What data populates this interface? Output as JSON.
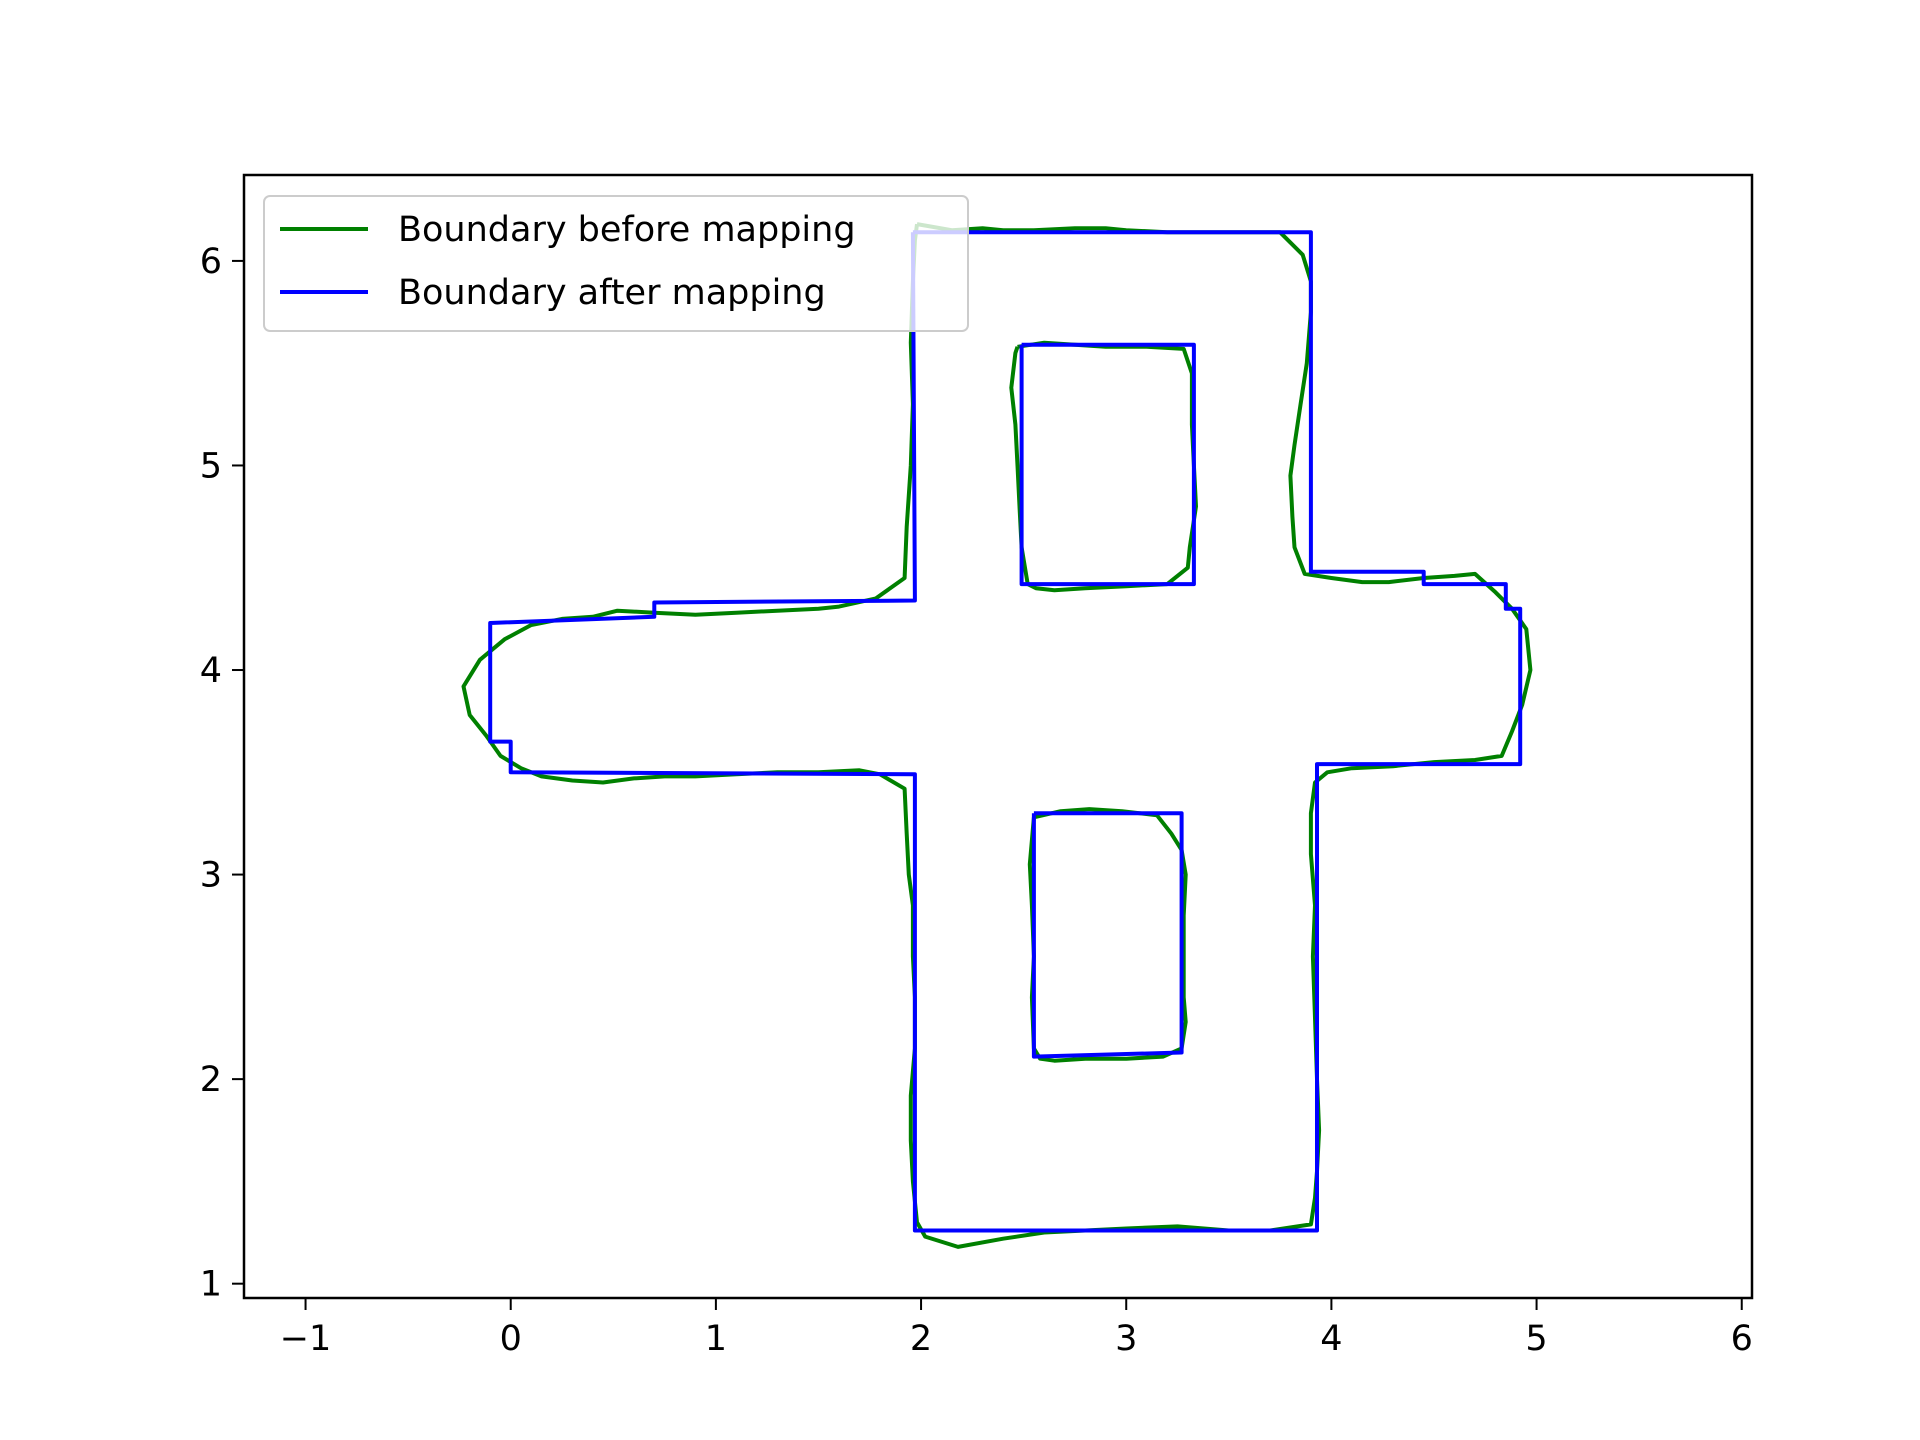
{
  "chart_data": {
    "type": "line",
    "title": "",
    "xlabel": "",
    "ylabel": "",
    "xlim": [
      -1.3,
      6.05
    ],
    "ylim": [
      0.93,
      6.42
    ],
    "xticks": [
      -1,
      0,
      1,
      2,
      3,
      4,
      5,
      6
    ],
    "xtick_labels": [
      "−1",
      "0",
      "1",
      "2",
      "3",
      "4",
      "5",
      "6"
    ],
    "yticks": [
      1,
      2,
      3,
      4,
      5,
      6
    ],
    "ytick_labels": [
      "1",
      "2",
      "3",
      "4",
      "5",
      "6"
    ],
    "grid": false,
    "legend_position": "upper-left",
    "series": [
      {
        "name": "Boundary before mapping",
        "color": "#008000",
        "paths": [
          [
            [
              1.98,
              6.18
            ],
            [
              2.15,
              6.15
            ],
            [
              2.3,
              6.16
            ],
            [
              2.4,
              6.15
            ],
            [
              2.55,
              6.15
            ],
            [
              2.75,
              6.16
            ],
            [
              2.9,
              6.16
            ],
            [
              3.0,
              6.15
            ],
            [
              3.2,
              6.14
            ],
            [
              3.4,
              6.14
            ],
            [
              3.6,
              6.14
            ],
            [
              3.75,
              6.14
            ],
            [
              3.86,
              6.03
            ],
            [
              3.9,
              5.9
            ],
            [
              3.9,
              5.75
            ],
            [
              3.88,
              5.5
            ],
            [
              3.85,
              5.3
            ],
            [
              3.82,
              5.1
            ],
            [
              3.8,
              4.95
            ],
            [
              3.81,
              4.75
            ],
            [
              3.82,
              4.6
            ],
            [
              3.87,
              4.47
            ],
            [
              4.0,
              4.45
            ],
            [
              4.15,
              4.43
            ],
            [
              4.28,
              4.43
            ],
            [
              4.45,
              4.45
            ],
            [
              4.6,
              4.46
            ],
            [
              4.7,
              4.47
            ],
            [
              4.8,
              4.38
            ],
            [
              4.88,
              4.3
            ],
            [
              4.95,
              4.2
            ],
            [
              4.97,
              4.0
            ],
            [
              4.93,
              3.83
            ],
            [
              4.88,
              3.7
            ],
            [
              4.83,
              3.58
            ],
            [
              4.7,
              3.56
            ],
            [
              4.5,
              3.55
            ],
            [
              4.3,
              3.53
            ],
            [
              4.1,
              3.52
            ],
            [
              3.98,
              3.5
            ],
            [
              3.92,
              3.45
            ],
            [
              3.9,
              3.3
            ],
            [
              3.9,
              3.1
            ],
            [
              3.92,
              2.85
            ],
            [
              3.91,
              2.6
            ],
            [
              3.92,
              2.3
            ],
            [
              3.93,
              2.0
            ],
            [
              3.94,
              1.75
            ],
            [
              3.93,
              1.55
            ],
            [
              3.92,
              1.42
            ],
            [
              3.9,
              1.29
            ],
            [
              3.7,
              1.26
            ],
            [
              3.5,
              1.26
            ],
            [
              3.25,
              1.28
            ],
            [
              3.0,
              1.27
            ],
            [
              2.8,
              1.26
            ],
            [
              2.6,
              1.25
            ],
            [
              2.4,
              1.22
            ],
            [
              2.18,
              1.18
            ],
            [
              2.02,
              1.23
            ],
            [
              1.98,
              1.3
            ],
            [
              1.96,
              1.5
            ],
            [
              1.95,
              1.7
            ],
            [
              1.95,
              1.92
            ],
            [
              1.97,
              2.15
            ],
            [
              1.97,
              2.4
            ],
            [
              1.96,
              2.6
            ],
            [
              1.96,
              2.85
            ],
            [
              1.94,
              3.0
            ],
            [
              1.93,
              3.2
            ],
            [
              1.92,
              3.42
            ],
            [
              1.8,
              3.49
            ],
            [
              1.7,
              3.51
            ],
            [
              1.5,
              3.5
            ],
            [
              1.3,
              3.5
            ],
            [
              1.1,
              3.49
            ],
            [
              0.9,
              3.48
            ],
            [
              0.75,
              3.48
            ],
            [
              0.6,
              3.47
            ],
            [
              0.45,
              3.45
            ],
            [
              0.3,
              3.46
            ],
            [
              0.15,
              3.48
            ],
            [
              0.05,
              3.52
            ],
            [
              -0.05,
              3.58
            ],
            [
              -0.12,
              3.68
            ],
            [
              -0.2,
              3.78
            ],
            [
              -0.23,
              3.92
            ],
            [
              -0.15,
              4.05
            ],
            [
              -0.03,
              4.15
            ],
            [
              0.1,
              4.22
            ],
            [
              0.25,
              4.25
            ],
            [
              0.4,
              4.26
            ],
            [
              0.52,
              4.29
            ],
            [
              0.7,
              4.28
            ],
            [
              0.9,
              4.27
            ],
            [
              1.1,
              4.28
            ],
            [
              1.3,
              4.29
            ],
            [
              1.5,
              4.3
            ],
            [
              1.6,
              4.31
            ],
            [
              1.78,
              4.35
            ],
            [
              1.92,
              4.45
            ],
            [
              1.93,
              4.7
            ],
            [
              1.95,
              5.0
            ],
            [
              1.96,
              5.3
            ],
            [
              1.95,
              5.6
            ],
            [
              1.96,
              5.9
            ],
            [
              1.97,
              6.1
            ],
            [
              1.98,
              6.18
            ]
          ],
          [
            [
              2.47,
              5.58
            ],
            [
              2.6,
              5.6
            ],
            [
              2.75,
              5.59
            ],
            [
              2.9,
              5.58
            ],
            [
              3.1,
              5.58
            ],
            [
              3.28,
              5.57
            ],
            [
              3.32,
              5.45
            ],
            [
              3.32,
              5.2
            ],
            [
              3.33,
              5.0
            ],
            [
              3.34,
              4.8
            ],
            [
              3.31,
              4.6
            ],
            [
              3.3,
              4.5
            ],
            [
              3.2,
              4.42
            ],
            [
              3.0,
              4.41
            ],
            [
              2.8,
              4.4
            ],
            [
              2.65,
              4.39
            ],
            [
              2.56,
              4.4
            ],
            [
              2.52,
              4.42
            ],
            [
              2.49,
              4.6
            ],
            [
              2.48,
              4.8
            ],
            [
              2.47,
              5.0
            ],
            [
              2.46,
              5.2
            ],
            [
              2.44,
              5.38
            ],
            [
              2.46,
              5.55
            ],
            [
              2.47,
              5.58
            ]
          ],
          [
            [
              2.55,
              3.28
            ],
            [
              2.68,
              3.31
            ],
            [
              2.82,
              3.32
            ],
            [
              2.98,
              3.31
            ],
            [
              3.15,
              3.29
            ],
            [
              3.22,
              3.2
            ],
            [
              3.27,
              3.12
            ],
            [
              3.29,
              3.0
            ],
            [
              3.28,
              2.8
            ],
            [
              3.28,
              2.55
            ],
            [
              3.28,
              2.4
            ],
            [
              3.29,
              2.28
            ],
            [
              3.27,
              2.15
            ],
            [
              3.18,
              2.11
            ],
            [
              3.0,
              2.1
            ],
            [
              2.8,
              2.1
            ],
            [
              2.65,
              2.09
            ],
            [
              2.58,
              2.1
            ],
            [
              2.55,
              2.15
            ],
            [
              2.54,
              2.4
            ],
            [
              2.55,
              2.6
            ],
            [
              2.54,
              2.85
            ],
            [
              2.53,
              3.05
            ],
            [
              2.55,
              3.28
            ]
          ]
        ]
      },
      {
        "name": "Boundary after mapping",
        "color": "#0000ff",
        "paths": [
          [
            [
              1.96,
              6.14
            ],
            [
              3.9,
              6.14
            ],
            [
              3.9,
              4.48
            ],
            [
              4.45,
              4.48
            ],
            [
              4.45,
              4.42
            ],
            [
              4.85,
              4.42
            ],
            [
              4.85,
              4.3
            ],
            [
              4.92,
              4.3
            ],
            [
              4.92,
              3.54
            ],
            [
              3.93,
              3.54
            ],
            [
              3.93,
              1.26
            ],
            [
              1.97,
              1.26
            ],
            [
              1.97,
              3.49
            ],
            [
              0.0,
              3.5
            ],
            [
              0.0,
              3.65
            ],
            [
              -0.1,
              3.65
            ],
            [
              -0.1,
              4.23
            ],
            [
              0.7,
              4.26
            ],
            [
              0.7,
              4.33
            ],
            [
              1.97,
              4.34
            ],
            [
              1.96,
              6.14
            ]
          ],
          [
            [
              2.49,
              5.59
            ],
            [
              3.33,
              5.59
            ],
            [
              3.33,
              4.42
            ],
            [
              2.49,
              4.42
            ],
            [
              2.49,
              5.59
            ]
          ],
          [
            [
              2.55,
              3.3
            ],
            [
              3.27,
              3.3
            ],
            [
              3.27,
              2.13
            ],
            [
              2.55,
              2.11
            ],
            [
              2.55,
              3.3
            ]
          ]
        ]
      }
    ]
  }
}
